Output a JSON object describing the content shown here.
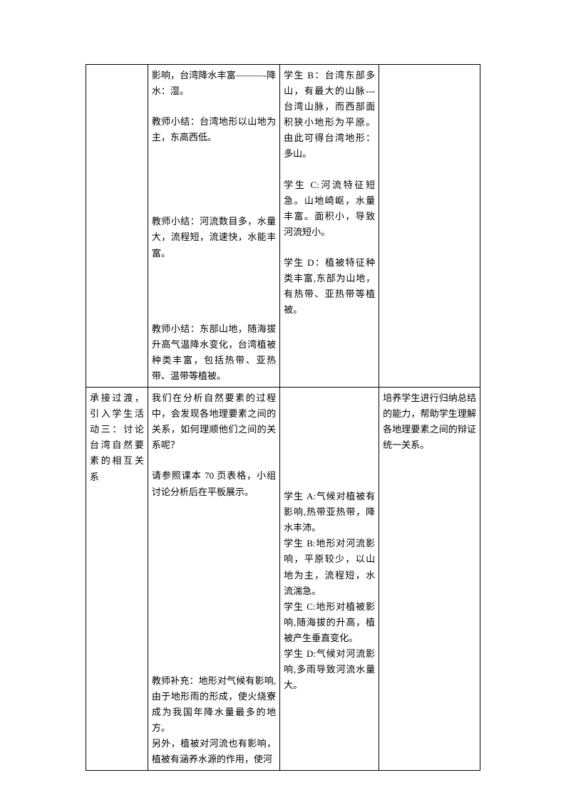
{
  "row1": {
    "col1": "",
    "col2": {
      "p1": "影响，台湾降水丰富———-降水：湿。",
      "p2": "教师小结：台湾地形以山地为主，东高西低。",
      "p3": "教师小结：河流数目多，水量大，流程短，流速快，水能丰富。",
      "p4": "教师小结：东部山地，随海拔升高气温降水变化，台湾植被种类丰富，包括热带、亚热带、温带等植被。"
    },
    "col3": {
      "p1": "学生 B：台湾东部多山，有最大的山脉---台湾山脉，而西部面积狭小地形为平原。由此可得台湾地形：多山。",
      "p2": "学生 C:河流特征短急。山地崎岖，水量丰富。面积小，导致河流短小。",
      "p3": "学生 D：植被特征种类丰富,东部为山地，有热带、亚热带等植被。"
    },
    "col4": ""
  },
  "row2": {
    "col1": "承接过渡，引入学生活动三：讨论台湾自然要素的相互关系",
    "col2": {
      "p1": "我们在分析自然要素的过程中，会发现各地理要素之间的关系，如何理顺他们之间的关系呢？",
      "p2": "请参照课本 70 页表格，小组讨论分析后在平板展示。",
      "p3": "教师补充：地形对气候有影响,由于地形雨的形成，使火烧寮成为我国年降水量最多的地方。",
      "p4": "另外，植被对河流也有影响，植被有涵养水源的作用，使河"
    },
    "col3": {
      "p1": "学生 A:气候对植被有影响,热带亚热带，降水丰沛。",
      "p2": "学生 B:地形对河流影响，平原较少，以山地为主，流程短，水流湍急。",
      "p3": "学生 C:地形对植被影响,随海拔的升高，植被产生垂直变化。",
      "p4": "学生 D:气候对河流影响,多雨导致河流水量大。"
    },
    "col4": "培养学生进行归纳总结的能力，帮助学生理解各地理要素之间的辩证统一关系。"
  }
}
